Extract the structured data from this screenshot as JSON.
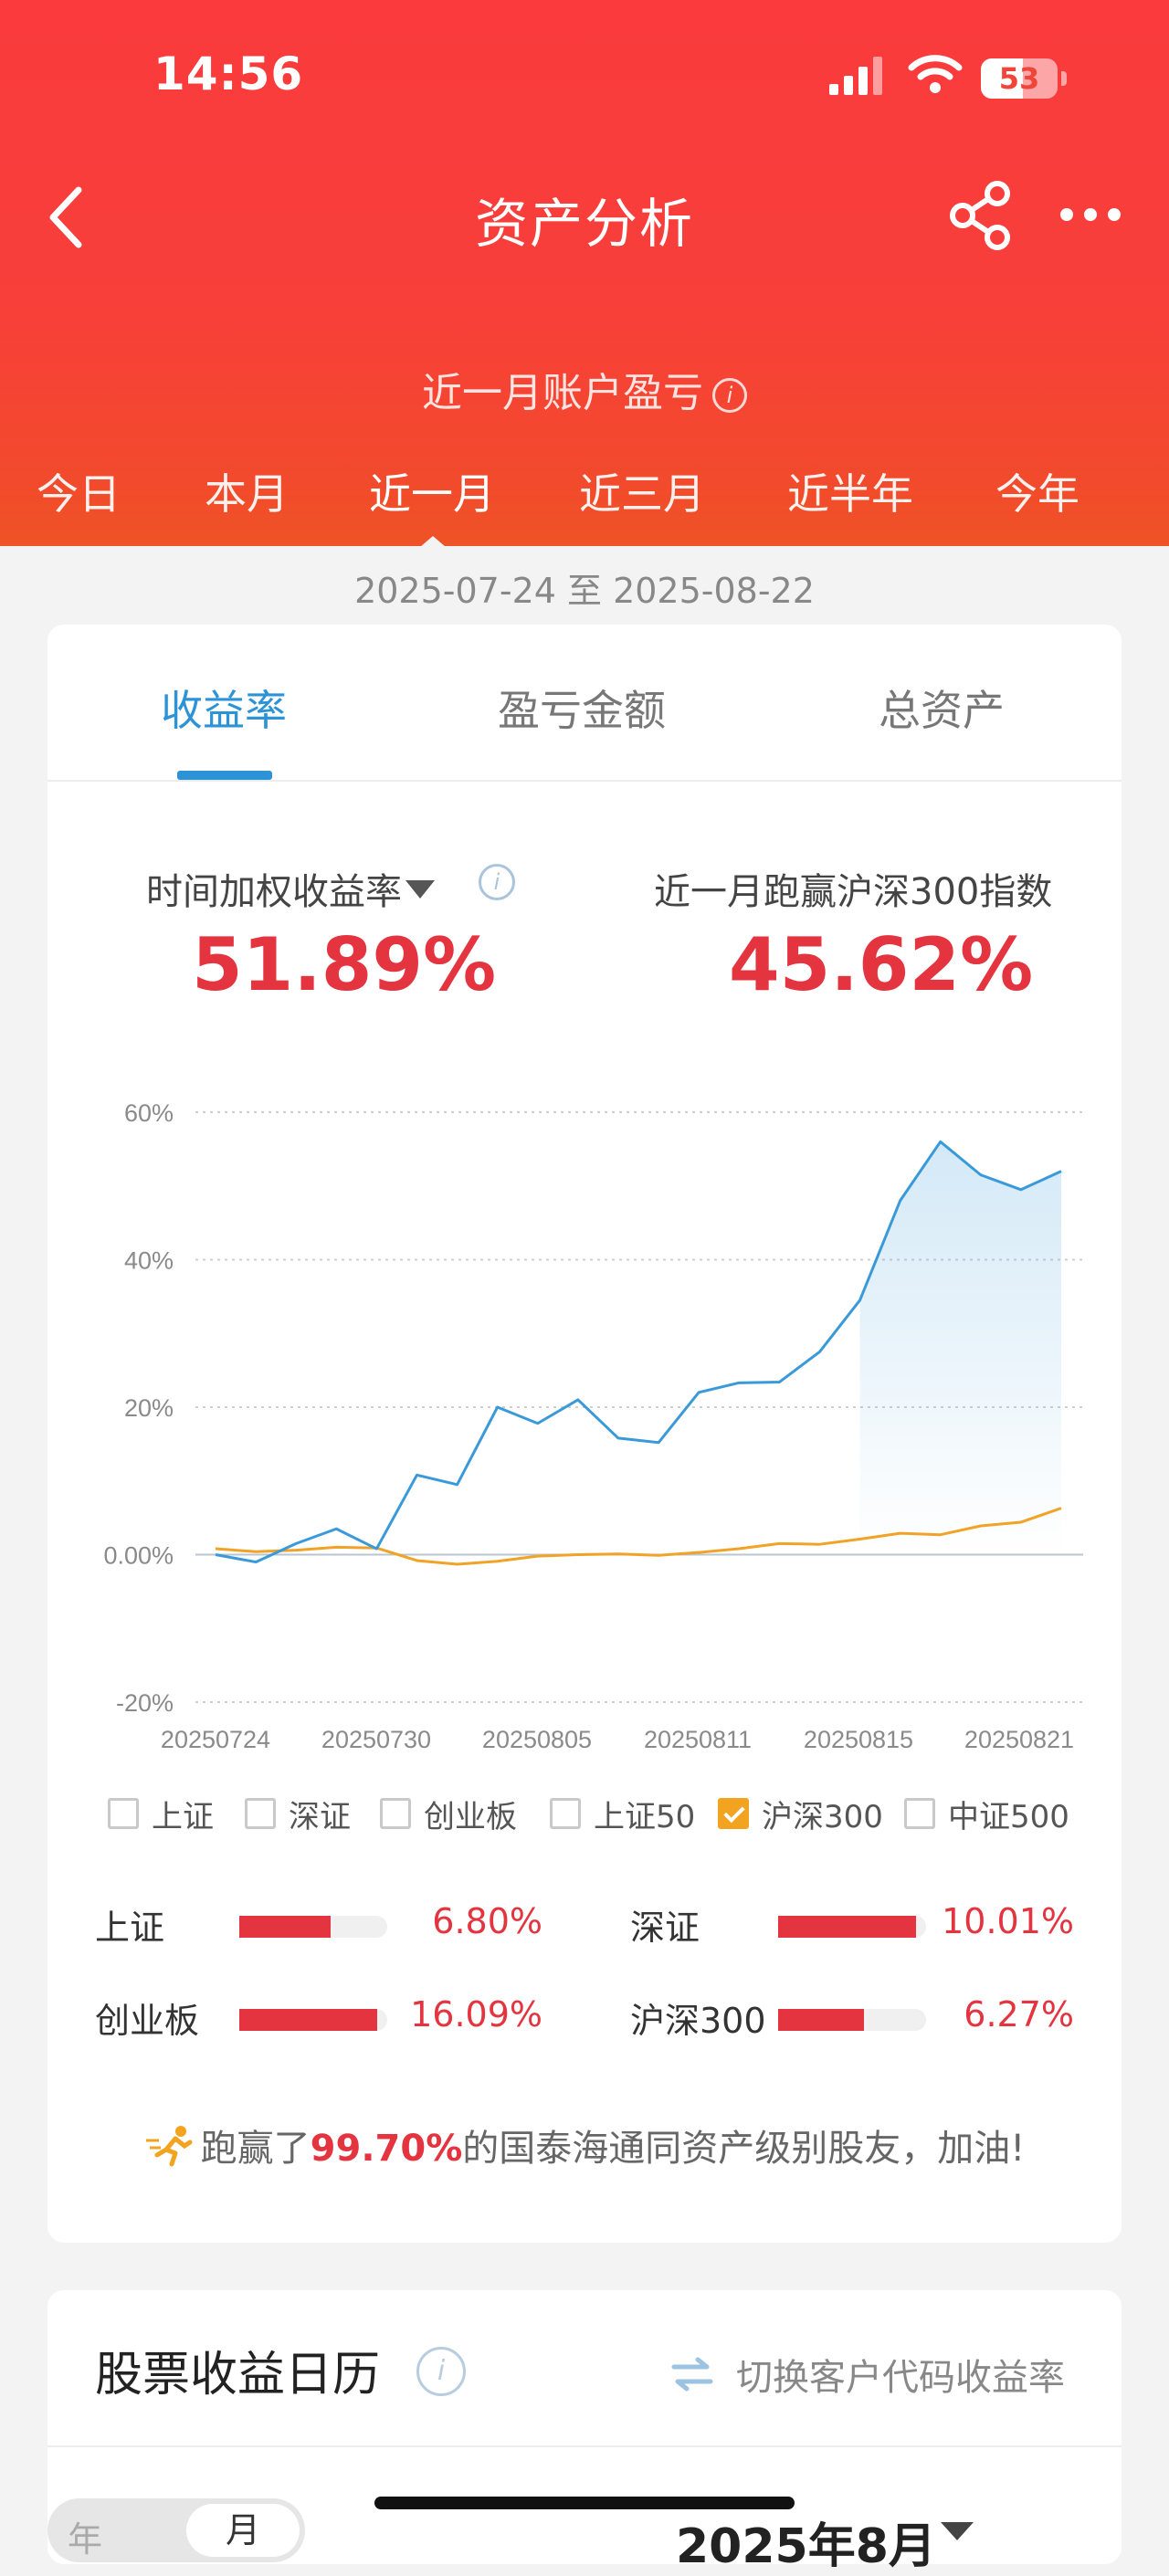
{
  "status_bar": {
    "time": "14:56",
    "battery": "53"
  },
  "nav": {
    "title": "资产分析"
  },
  "header": {
    "subtitle": "近一月账户盈亏",
    "period_tabs": [
      "今日",
      "本月",
      "近一月",
      "近三月",
      "近半年",
      "今年"
    ],
    "active_period": "近一月"
  },
  "date_range": "2025-07-24 至 2025-08-22",
  "metric_tabs": [
    "收益率",
    "盈亏金额",
    "总资产"
  ],
  "active_metric": "收益率",
  "stats": {
    "left_label": "时间加权收益率",
    "left_value": "51.89%",
    "right_label": "近一月跑赢沪深300指数",
    "right_value": "45.62%"
  },
  "chart_data": {
    "type": "line",
    "y_ticks": [
      "60%",
      "40%",
      "20%",
      "0.00%",
      "-20%"
    ],
    "x_ticks": [
      "20250724",
      "20250730",
      "20250805",
      "20250811",
      "20250815",
      "20250821"
    ],
    "ylim": [
      -20,
      60
    ],
    "series": [
      {
        "name": "收益率",
        "color": "#3a9ad9",
        "values": [
          0.0,
          -1.0,
          1.5,
          3.5,
          0.8,
          10.8,
          9.5,
          20.0,
          17.8,
          21.0,
          15.8,
          15.2,
          22.0,
          23.3,
          23.4,
          27.5,
          34.5,
          48.0,
          56.0,
          51.5,
          49.5,
          52.0
        ]
      },
      {
        "name": "沪深300",
        "color": "#f0a327",
        "values": [
          0.8,
          0.4,
          0.6,
          1.0,
          0.9,
          -0.8,
          -1.3,
          -0.9,
          -0.2,
          0.0,
          0.1,
          -0.1,
          0.3,
          0.8,
          1.5,
          1.4,
          2.1,
          2.9,
          2.7,
          3.9,
          4.4,
          6.3
        ]
      }
    ]
  },
  "legend": [
    {
      "label": "上证",
      "checked": false
    },
    {
      "label": "深证",
      "checked": false
    },
    {
      "label": "创业板",
      "checked": false
    },
    {
      "label": "上证50",
      "checked": false
    },
    {
      "label": "沪深300",
      "checked": true
    },
    {
      "label": "中证500",
      "checked": false
    }
  ],
  "indices": [
    {
      "name": "上证",
      "value": "6.80%",
      "fill": 0.62
    },
    {
      "name": "深证",
      "value": "10.01%",
      "fill": 0.93
    },
    {
      "name": "创业板",
      "value": "16.09%",
      "fill": 0.93
    },
    {
      "name": "沪深300",
      "value": "6.27%",
      "fill": 0.58
    }
  ],
  "ranking": {
    "prefix": "跑赢了",
    "percent": "99.70%",
    "suffix": "的国泰海通同资产级别股友，加油!"
  },
  "calendar": {
    "title": "股票收益日历",
    "switch_label": "切换客户代码收益率",
    "seg_options": [
      "年",
      "月"
    ],
    "month": "2025年8月"
  }
}
